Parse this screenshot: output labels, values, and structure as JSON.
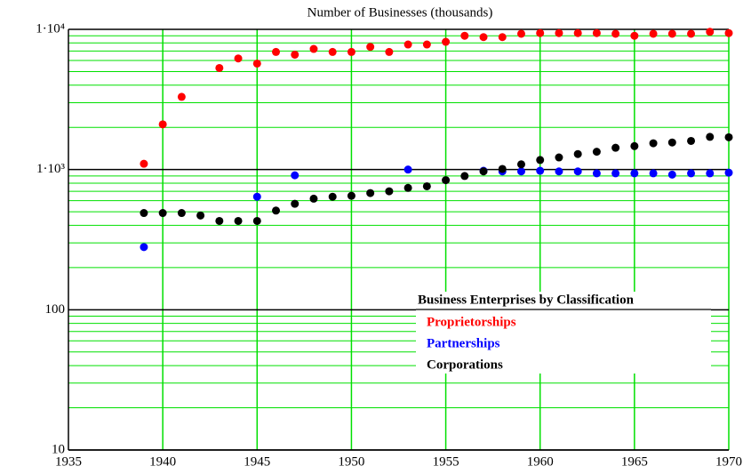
{
  "chart_data": {
    "type": "scatter",
    "title": "Number of Businesses (thousands)",
    "legend_title": "Business Enterprises by Classification",
    "x": [
      1939,
      1940,
      1941,
      1942,
      1943,
      1944,
      1945,
      1946,
      1947,
      1948,
      1949,
      1950,
      1951,
      1952,
      1953,
      1954,
      1955,
      1956,
      1957,
      1958,
      1959,
      1960,
      1961,
      1962,
      1963,
      1964,
      1965,
      1966,
      1967,
      1968,
      1969,
      1970
    ],
    "series": [
      {
        "name": "Proprietorships",
        "color": "#ff0000",
        "values": [
          1100,
          2100,
          3300,
          null,
          5300,
          6200,
          5700,
          6900,
          6600,
          7250,
          6900,
          6900,
          7500,
          6900,
          7800,
          7800,
          8150,
          9000,
          8800,
          8800,
          9300,
          9400,
          9400,
          9400,
          9400,
          9300,
          9000,
          9300,
          9300,
          9300,
          9600,
          9400
        ]
      },
      {
        "name": "Partnerships",
        "color": "#0000ff",
        "values": [
          280,
          null,
          null,
          null,
          null,
          null,
          640,
          null,
          910,
          null,
          null,
          null,
          null,
          null,
          1000,
          null,
          null,
          null,
          980,
          970,
          970,
          980,
          970,
          970,
          940,
          940,
          940,
          940,
          920,
          940,
          940,
          950
        ]
      },
      {
        "name": "Corporations",
        "color": "#000000",
        "values": [
          490,
          490,
          490,
          470,
          430,
          430,
          430,
          510,
          570,
          620,
          640,
          650,
          680,
          700,
          740,
          760,
          840,
          900,
          970,
          1010,
          1090,
          1170,
          1220,
          1290,
          1340,
          1430,
          1470,
          1540,
          1560,
          1600,
          1710,
          1700
        ]
      }
    ],
    "xlim": [
      1935,
      1970
    ],
    "xticks": [
      1935,
      1940,
      1945,
      1950,
      1955,
      1960,
      1965,
      1970
    ],
    "ylim": [
      10,
      10000
    ],
    "yticks": [
      10,
      100,
      {
        "value": 1000,
        "label": "1·10³"
      },
      {
        "value": 10000,
        "label": "1·10⁴"
      }
    ],
    "log_y": true,
    "grid": true,
    "minor_grid": true,
    "grid_color": "#00e000",
    "legend": "lower right"
  }
}
